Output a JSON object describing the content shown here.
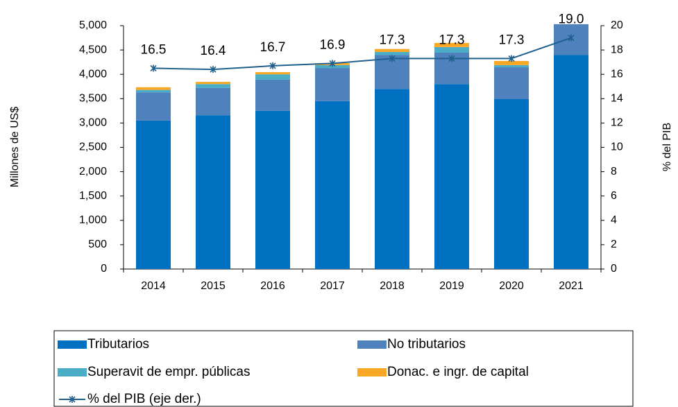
{
  "chart_data": {
    "type": "bar",
    "y_label": "Millones de US$",
    "y2_label": "% del PIB",
    "categories": [
      "2014",
      "2015",
      "2016",
      "2017",
      "2018",
      "2019",
      "2020",
      "2021"
    ],
    "series": [
      {
        "name": "Tributarios",
        "color": "#0070c0",
        "values": [
          3050,
          3160,
          3250,
          3450,
          3700,
          3800,
          3490,
          4400
        ]
      },
      {
        "name": "No tributarios",
        "color": "#4f81bd",
        "values": [
          580,
          560,
          640,
          680,
          700,
          645,
          655,
          630
        ]
      },
      {
        "name": "Superavit de empr. públicas",
        "color": "#4bacc6",
        "values": [
          50,
          80,
          110,
          60,
          60,
          115,
          45,
          0
        ]
      },
      {
        "name": "Donac. e ingr. de capital",
        "color": "#f9a825",
        "values": [
          55,
          45,
          45,
          40,
          60,
          85,
          85,
          0
        ]
      },
      {
        "name": "% del PIB (eje der.)",
        "color": "#1f5f8b",
        "type": "line",
        "axis": "y2",
        "values": [
          16.5,
          16.4,
          16.7,
          16.9,
          17.3,
          17.3,
          17.3,
          19.0
        ],
        "value_labels": [
          "16.5",
          "16.4",
          "16.7",
          "16.9",
          "17.3",
          "17.3",
          "17.3",
          "19.0"
        ]
      }
    ],
    "ylim": [
      0,
      5000
    ],
    "yticks": [
      0,
      500,
      {
        "value": 1000,
        "label": "1,000"
      },
      {
        "value": 1500,
        "label": "1,500"
      },
      {
        "value": 2000,
        "label": "2,000"
      },
      {
        "value": 2500,
        "label": "2,500"
      },
      {
        "value": 3000,
        "label": "3,000"
      },
      {
        "value": 3500,
        "label": "3,500"
      },
      {
        "value": 4000,
        "label": "4,000"
      },
      {
        "value": 4500,
        "label": "4,500"
      },
      {
        "value": 5000,
        "label": "5,000"
      }
    ],
    "y2lim": [
      0,
      20
    ],
    "y2ticks": [
      0,
      2,
      4,
      6,
      8,
      10,
      12,
      14,
      16,
      18,
      20
    ],
    "grid": false,
    "legend": "bottom"
  }
}
